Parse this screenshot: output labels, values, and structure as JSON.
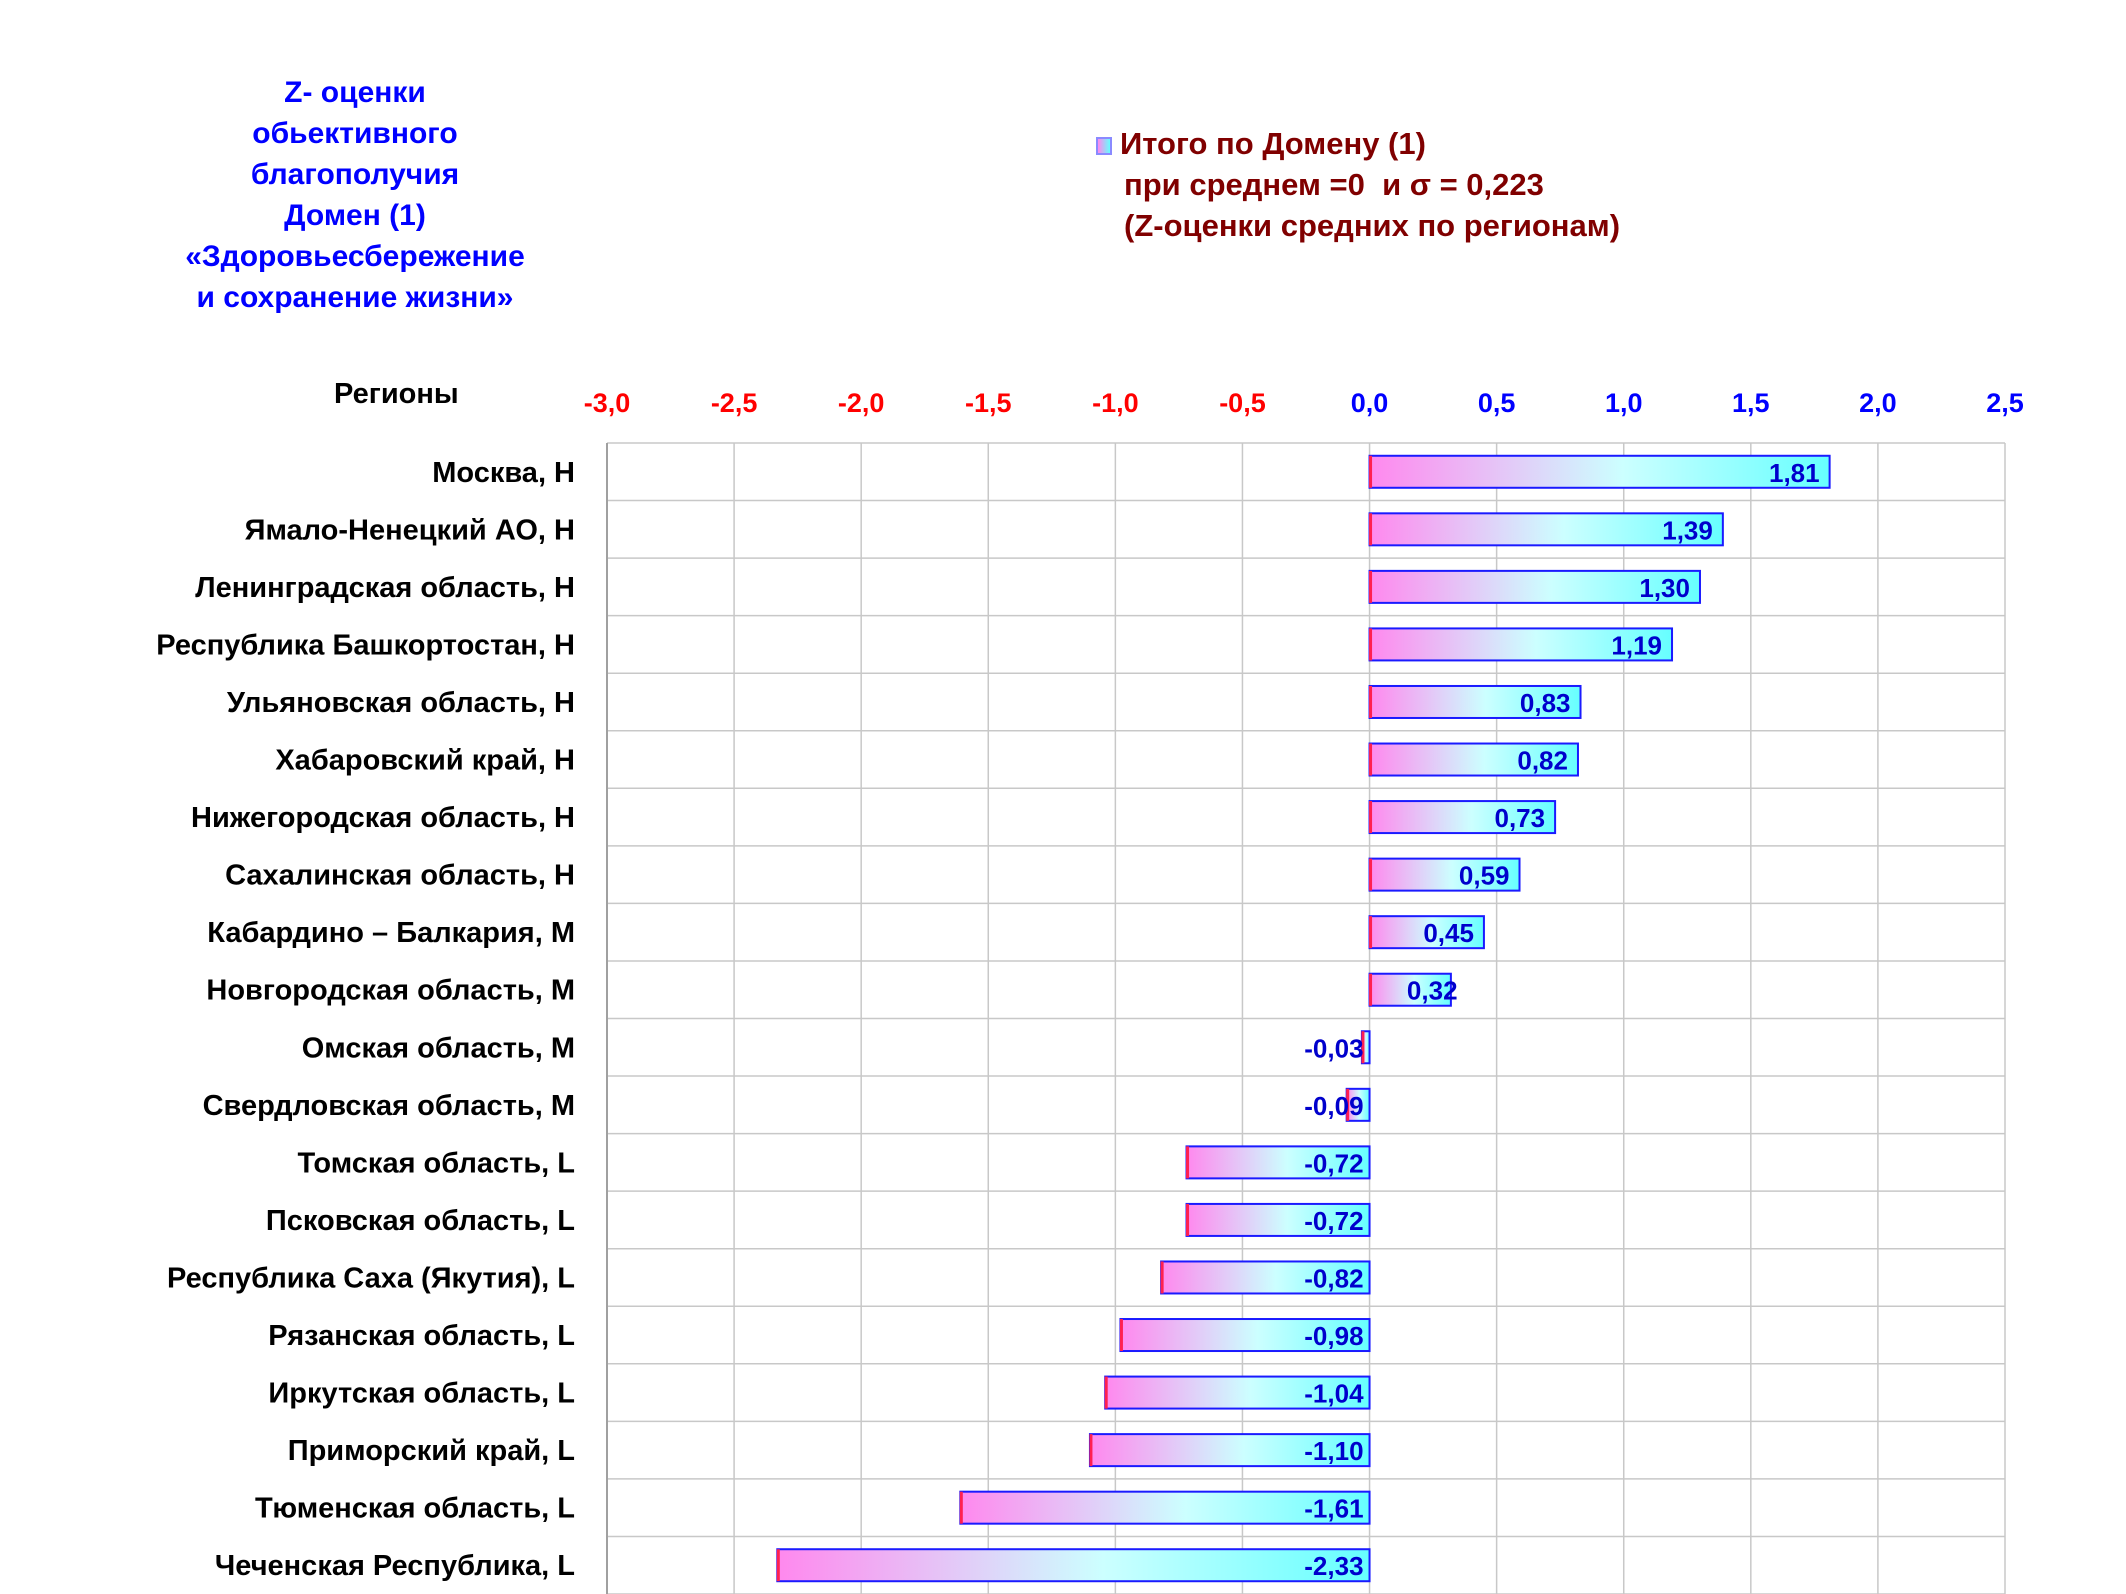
{
  "chart_data": {
    "type": "bar",
    "orientation": "horizontal",
    "title_lines": [
      "Z- оценки",
      "обьективного",
      "благополучия",
      "Домен (1)",
      "«Здоровьесбережение",
      "и сохранение жизни»"
    ],
    "ylabel": "Регионы",
    "legend": {
      "placement": "top-right",
      "lines": [
        "Итого по Домену (1)",
        "при среднем =0  и σ = 0,223",
        "(Z-оценки средних по регионам)"
      ]
    },
    "xlim": [
      -3.0,
      2.5
    ],
    "x_ticks": [
      -3.0,
      -2.5,
      -2.0,
      -1.5,
      -1.0,
      -0.5,
      0.0,
      0.5,
      1.0,
      1.5,
      2.0,
      2.5
    ],
    "x_tick_labels": [
      "-3,0",
      "-2,5",
      "-2,0",
      "-1,5",
      "-1,0",
      "-0,5",
      "0,0",
      "0,5",
      "1,0",
      "1,5",
      "2,0",
      "2,5"
    ],
    "grid": true,
    "categories": [
      "Москва,  Н",
      "Ямало-Ненецкий АО,  Н",
      "Ленинградская область,  Н",
      "Республика Башкортостан,  Н",
      "Ульяновская область,  Н",
      "Хабаровский край,  Н",
      "Нижегородская область,  Н",
      "Сахалинская область,  Н",
      "Кабардино – Балкария,  М",
      "Новгородская область,  М",
      "Омская область,  М",
      "Свердловская область,  М",
      "Томская область,  L",
      "Псковская область,  L",
      "Республика Саха (Якутия),  L",
      "Рязанская область,  L",
      "Иркутская область,  L",
      "Приморский край,  L",
      "Тюменская область,  L",
      "Чеченская Республика,  L"
    ],
    "series": [
      {
        "values": [
          1.81,
          1.39,
          1.3,
          1.19,
          0.83,
          0.82,
          0.73,
          0.59,
          0.45,
          0.32,
          -0.03,
          -0.09,
          -0.72,
          -0.72,
          -0.82,
          -0.98,
          -1.04,
          -1.1,
          -1.61,
          -2.33
        ],
        "value_labels": [
          "1,81",
          "1,39",
          "1,30",
          "1,19",
          "0,83",
          "0,82",
          "0,73",
          "0,59",
          "0,45",
          "0,32",
          "-0,03",
          "-0,09",
          "-0,72",
          "-0,72",
          "-0,82",
          "-0,98",
          "-1,04",
          "-1,10",
          "-1,61",
          "-2,33"
        ]
      }
    ],
    "colors": {
      "negative_tick": "#ff0000",
      "positive_tick": "#0000ff",
      "gradient_start": "#ff88ee",
      "gradient_end": "#66ffff",
      "bar_border_positive": "#1a1aff",
      "bar_border_negative": "#ff2050",
      "gridline": "#c8c8c8",
      "data_label": "#0000cc"
    }
  }
}
